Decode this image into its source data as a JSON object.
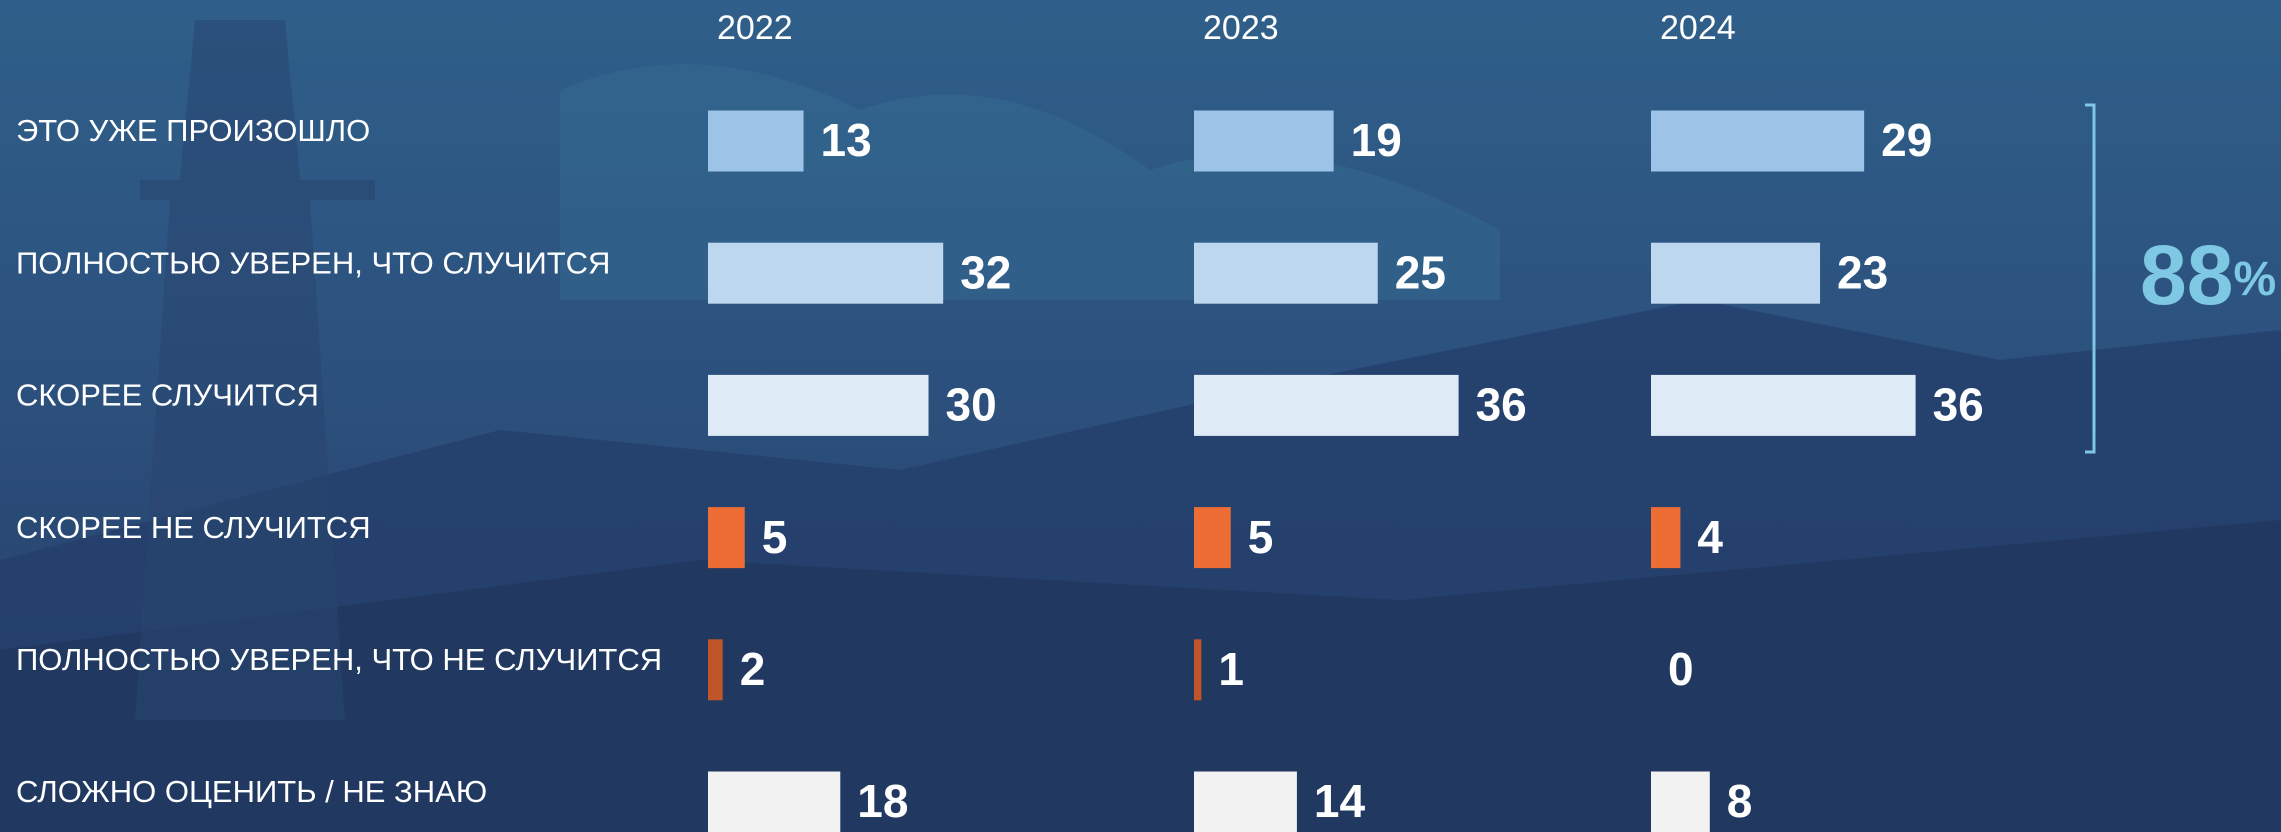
{
  "chart_data": {
    "type": "bar",
    "categories": [
      "ЭТО УЖЕ ПРОИЗОШЛО",
      "ПОЛНОСТЬЮ УВЕРЕН, ЧТО СЛУЧИТСЯ",
      "СКОРЕЕ СЛУЧИТСЯ",
      "СКОРЕЕ НЕ СЛУЧИТСЯ",
      "ПОЛНОСТЬЮ УВЕРЕН, ЧТО НЕ СЛУЧИТСЯ",
      "СЛОЖНО ОЦЕНИТЬ / НЕ ЗНАЮ"
    ],
    "category_colors": [
      "#9dc3e6",
      "#bdd7ee",
      "#deebf7",
      "#ed6d35",
      "#c0552a",
      "#f2f2f2"
    ],
    "series": [
      {
        "name": "2022",
        "values": [
          13,
          32,
          30,
          5,
          2,
          18
        ]
      },
      {
        "name": "2023",
        "values": [
          19,
          25,
          36,
          5,
          1,
          14
        ]
      },
      {
        "name": "2024",
        "values": [
          29,
          23,
          36,
          4,
          0,
          8
        ]
      }
    ],
    "annotation": {
      "text": "88",
      "unit": "%",
      "color": "#7ec8e3"
    }
  }
}
